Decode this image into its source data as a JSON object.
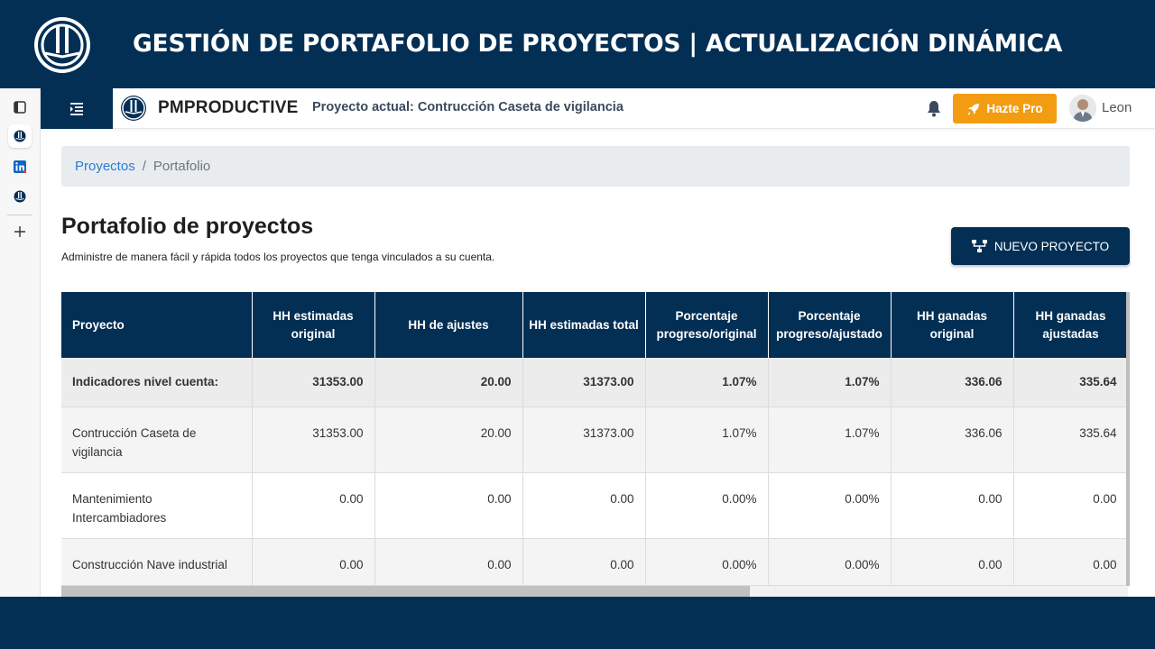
{
  "slide": {
    "title": "GESTIÓN DE PORTAFOLIO DE PROYECTOS | ACTUALIZACIÓN DINÁMICA"
  },
  "browser_strip": {
    "icons": [
      "tab-panel-icon",
      "app-logo-icon",
      "linkedin-icon",
      "app-logo-icon",
      "plus-icon"
    ]
  },
  "topbar": {
    "brand": "PMPRODUCTIVE",
    "current_project": "Proyecto actual: Contrucción Caseta de vigilancia",
    "pro_button": "Hazte Pro",
    "user_name": "Leon"
  },
  "breadcrumb": {
    "link": "Proyectos",
    "separator": "/",
    "current": "Portafolio"
  },
  "page": {
    "title": "Portafolio de proyectos",
    "subtitle": "Administre de manera fácil y rápida todos los proyectos que tenga vinculados a su cuenta.",
    "new_button": "NUEVO PROYECTO"
  },
  "table": {
    "headers": [
      "Proyecto",
      "HH estimadas original",
      "HH de ajustes",
      "HH estimadas total",
      "Porcentaje progreso/original",
      "Porcentaje progreso/ajustado",
      "HH ganadas original",
      "HH ganadas ajustadas"
    ],
    "summary": [
      "Indicadores nivel cuenta:",
      "31353.00",
      "20.00",
      "31373.00",
      "1.07%",
      "1.07%",
      "336.06",
      "335.64"
    ],
    "rows": [
      [
        "Contrucción Caseta de vigilancia",
        "31353.00",
        "20.00",
        "31373.00",
        "1.07%",
        "1.07%",
        "336.06",
        "335.64"
      ],
      [
        "Mantenimiento Intercambiadores",
        "0.00",
        "0.00",
        "0.00",
        "0.00%",
        "0.00%",
        "0.00",
        "0.00"
      ],
      [
        "Construcción Nave industrial",
        "0.00",
        "0.00",
        "0.00",
        "0.00%",
        "0.00%",
        "0.00",
        "0.00"
      ]
    ]
  },
  "colors": {
    "navy": "#032f55",
    "orange": "#f39c12",
    "link": "#2a7bd6"
  }
}
